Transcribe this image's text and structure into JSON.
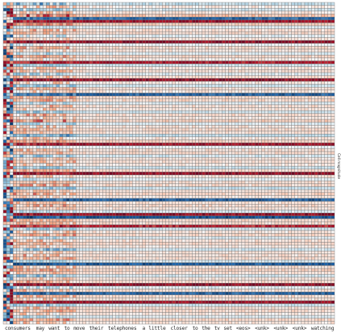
{
  "chart_data": {
    "type": "heatmap",
    "colormap": [
      "#053061",
      "#2166ac",
      "#92c5de",
      "#f7f7f7",
      "#f4a582",
      "#b2182b",
      "#67001f"
    ],
    "xlabels": [
      "consumers",
      "may",
      "want",
      "to",
      "move",
      "their",
      "telephones",
      "a",
      "little",
      "closer",
      "to",
      "the",
      "tv",
      "set",
      "<eos>",
      "<unk>",
      "<unk>",
      "<unk>",
      "watching"
    ],
    "colorbar_label": "Cell magnitude",
    "num_rows": 110,
    "value_range": [
      -1,
      1
    ],
    "row_patterns": [
      [
        -0.4,
        0.3
      ],
      [
        0.15,
        0.25
      ],
      [
        -0.3,
        0.22
      ],
      [
        0.2,
        0.2
      ],
      [
        0.55,
        0.25
      ],
      [
        -0.8,
        0.1
      ],
      [
        0.9,
        0.05
      ],
      [
        0.45,
        0.15
      ],
      [
        -0.2,
        0.1
      ],
      [
        0.25,
        0.2
      ],
      [
        0.3,
        0.15
      ],
      [
        -0.15,
        0.2
      ],
      [
        0.2,
        0.15
      ],
      [
        0.95,
        0.05
      ],
      [
        -0.1,
        0.15
      ],
      [
        0.3,
        0.2
      ],
      [
        0.2,
        0.15
      ],
      [
        -0.25,
        0.15
      ],
      [
        0.35,
        0.15
      ],
      [
        0.15,
        0.2
      ],
      [
        0.85,
        0.05
      ],
      [
        -0.3,
        0.15
      ],
      [
        0.2,
        0.2
      ],
      [
        0.25,
        0.15
      ],
      [
        -0.2,
        0.2
      ],
      [
        0.3,
        0.15
      ],
      [
        0.95,
        0.05
      ],
      [
        0.15,
        0.2
      ],
      [
        -0.35,
        0.15
      ],
      [
        0.25,
        0.15
      ],
      [
        0.2,
        0.2
      ],
      [
        -0.85,
        0.1
      ],
      [
        0.3,
        0.15
      ],
      [
        0.35,
        0.2
      ],
      [
        -0.2,
        0.15
      ],
      [
        0.25,
        0.2
      ],
      [
        0.2,
        0.15
      ],
      [
        -0.3,
        0.15
      ],
      [
        0.3,
        0.2
      ],
      [
        0.15,
        0.15
      ],
      [
        0.4,
        0.2
      ],
      [
        -0.25,
        0.15
      ],
      [
        0.2,
        0.2
      ],
      [
        0.3,
        0.15
      ],
      [
        0.25,
        0.15
      ],
      [
        -0.45,
        0.15
      ],
      [
        0.2,
        0.2
      ],
      [
        0.35,
        0.15
      ],
      [
        0.9,
        0.05
      ],
      [
        -0.15,
        0.15
      ],
      [
        0.25,
        0.2
      ],
      [
        0.3,
        0.15
      ],
      [
        -0.3,
        0.2
      ],
      [
        0.2,
        0.15
      ],
      [
        0.25,
        0.15
      ],
      [
        0.15,
        0.2
      ],
      [
        -0.35,
        0.15
      ],
      [
        0.3,
        0.15
      ],
      [
        0.95,
        0.05
      ],
      [
        0.2,
        0.2
      ],
      [
        -0.2,
        0.15
      ],
      [
        0.25,
        0.15
      ],
      [
        0.3,
        0.2
      ],
      [
        -0.4,
        0.15
      ],
      [
        0.2,
        0.15
      ],
      [
        0.35,
        0.2
      ],
      [
        0.15,
        0.15
      ],
      [
        -0.85,
        0.1
      ],
      [
        0.25,
        0.15
      ],
      [
        0.3,
        0.2
      ],
      [
        0.2,
        0.15
      ],
      [
        -0.25,
        0.15
      ],
      [
        0.95,
        0.05
      ],
      [
        -0.95,
        0.05
      ],
      [
        0.3,
        0.15
      ],
      [
        0.25,
        0.2
      ],
      [
        0.8,
        0.1
      ],
      [
        -0.3,
        0.15
      ],
      [
        0.2,
        0.2
      ],
      [
        0.35,
        0.15
      ],
      [
        -0.2,
        0.15
      ],
      [
        0.25,
        0.2
      ],
      [
        0.3,
        0.15
      ],
      [
        0.15,
        0.15
      ],
      [
        -0.35,
        0.2
      ],
      [
        0.2,
        0.15
      ],
      [
        0.25,
        0.2
      ],
      [
        0.3,
        0.15
      ],
      [
        -0.25,
        0.15
      ],
      [
        -0.9,
        0.05
      ],
      [
        0.2,
        0.2
      ],
      [
        0.35,
        0.15
      ],
      [
        0.25,
        0.15
      ],
      [
        -0.3,
        0.2
      ],
      [
        0.2,
        0.15
      ],
      [
        0.3,
        0.15
      ],
      [
        0.95,
        0.05
      ],
      [
        -0.2,
        0.2
      ],
      [
        0.25,
        0.15
      ],
      [
        -0.85,
        0.1
      ],
      [
        0.3,
        0.2
      ],
      [
        0.2,
        0.15
      ],
      [
        0.9,
        0.05
      ],
      [
        -0.35,
        0.15
      ],
      [
        0.25,
        0.2
      ],
      [
        0.3,
        0.15
      ],
      [
        0.15,
        0.2
      ],
      [
        -0.2,
        0.15
      ],
      [
        0.35,
        0.15
      ],
      [
        0.2,
        0.2
      ]
    ]
  }
}
